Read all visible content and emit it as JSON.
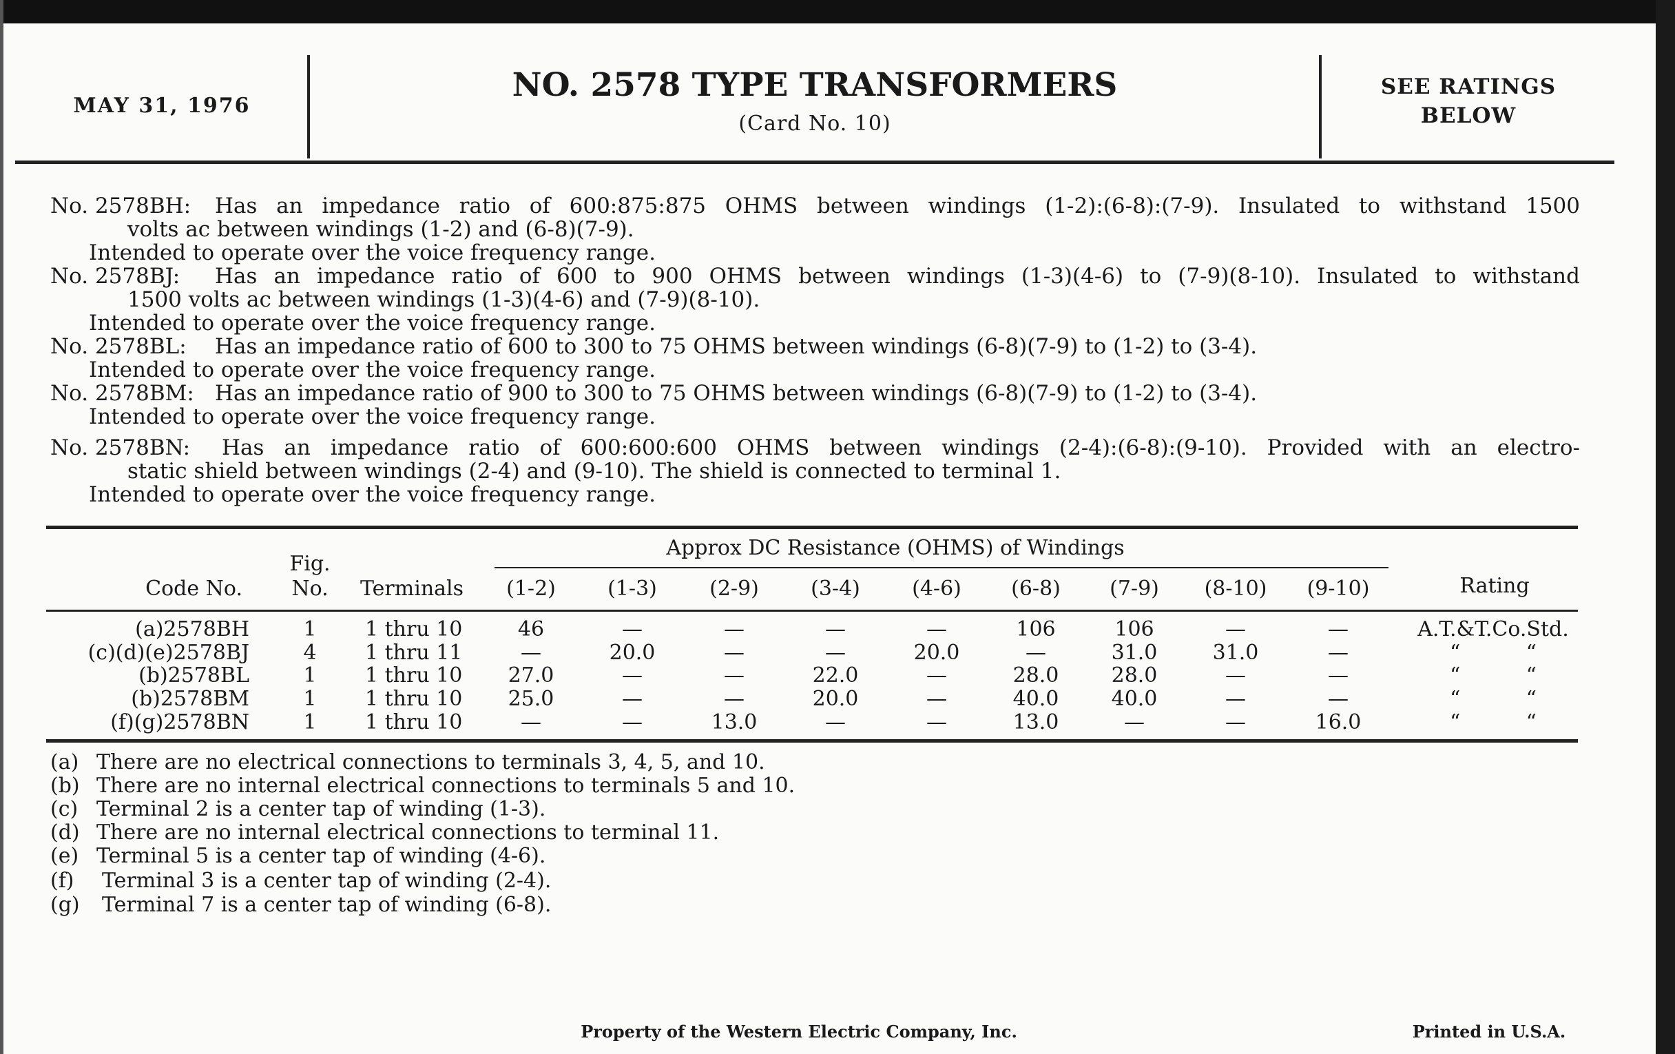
{
  "header": {
    "date": "MAY 31, 1976",
    "title": "NO. 2578 TYPE TRANSFORMERS",
    "subtitle": "(Card No. 10)",
    "ratings_line1": "SEE RATINGS",
    "ratings_line2": "BELOW"
  },
  "descriptions": [
    {
      "code": "No. 2578BH:",
      "lines": [
        "Has an impedance ratio of 600:875:875 OHMS between windings (1-2):(6-8):(7-9). Insulated to withstand 1500",
        "volts ac between windings (1-2) and (6-8)(7-9).",
        "Intended to operate over the voice frequency range."
      ]
    },
    {
      "code": "No. 2578BJ:",
      "lines": [
        "Has an impedance ratio of 600 to 900 OHMS between windings (1-3)(4-6) to (7-9)(8-10). Insulated to withstand",
        "1500 volts ac between windings (1-3)(4-6) and (7-9)(8-10).",
        "Intended to operate over the voice frequency range."
      ]
    },
    {
      "code": "No. 2578BL:",
      "lines": [
        "Has an impedance ratio of 600 to 300 to 75 OHMS between windings (6-8)(7-9) to (1-2) to (3-4).",
        "Intended to operate over the voice frequency range."
      ]
    },
    {
      "code": "No. 2578BM:",
      "lines": [
        "Has an impedance ratio of 900 to 300 to 75 OHMS between windings (6-8)(7-9) to (1-2) to (3-4).",
        "Intended to operate over the voice frequency range."
      ]
    },
    {
      "code": "No. 2578BN:",
      "lines": [
        "Has an impedance ratio of 600:600:600 OHMS between windings (2-4):(6-8):(9-10). Provided with an electro-",
        "static shield between windings (2-4) and (9-10). The shield is connected to terminal 1.",
        "Intended to operate over the voice frequency range."
      ]
    }
  ],
  "table": {
    "group_header": "Approx DC Resistance (OHMS) of Windings",
    "headers": {
      "code": "Code No.",
      "fig1": "Fig.",
      "fig2": "No.",
      "terminals": "Terminals",
      "rating": "Rating"
    },
    "windings": [
      "(1-2)",
      "(1-3)",
      "(2-9)",
      "(3-4)",
      "(4-6)",
      "(6-8)",
      "(7-9)",
      "(8-10)",
      "(9-10)"
    ],
    "rows": [
      {
        "code": "(a)2578BH",
        "fig": "1",
        "terminals": "1 thru 10",
        "values": [
          "46",
          "—",
          "—",
          "—",
          "—",
          "106",
          "106",
          "—",
          "—"
        ],
        "rating": "A.T.&T.Co.Std."
      },
      {
        "code": "(c)(d)(e)2578BJ",
        "fig": "4",
        "terminals": "1 thru 11",
        "values": [
          "—",
          "20.0",
          "—",
          "—",
          "20.0",
          "—",
          "31.0",
          "31.0",
          "—"
        ],
        "rating": "“          “"
      },
      {
        "code": "(b)2578BL",
        "fig": "1",
        "terminals": "1 thru 10",
        "values": [
          "27.0",
          "—",
          "—",
          "22.0",
          "—",
          "28.0",
          "28.0",
          "—",
          "—"
        ],
        "rating": "“          “"
      },
      {
        "code": "(b)2578BM",
        "fig": "1",
        "terminals": "1 thru 10",
        "values": [
          "25.0",
          "—",
          "—",
          "20.0",
          "—",
          "40.0",
          "40.0",
          "—",
          "—"
        ],
        "rating": "“          “"
      },
      {
        "code": "(f)(g)2578BN",
        "fig": "1",
        "terminals": "1 thru 10",
        "values": [
          "—",
          "—",
          "13.0",
          "—",
          "—",
          "13.0",
          "—",
          "—",
          "16.0"
        ],
        "rating": "“          “"
      }
    ]
  },
  "footnotes": [
    {
      "label": "(a)",
      "text": "There are no electrical connections to terminals 3, 4, 5, and 10."
    },
    {
      "label": "(b)",
      "text": "There are no internal electrical connections to terminals 5 and 10."
    },
    {
      "label": "(c)",
      "text": "Terminal 2 is a center tap of winding (1-3)."
    },
    {
      "label": "(d)",
      "text": "There are no internal electrical connections to terminal 11."
    },
    {
      "label": "(e)",
      "text": "Terminal 5 is a center tap of winding (4-6)."
    },
    {
      "label": "(f)",
      "text": "Terminal 3 is a center tap of winding (2-4)."
    },
    {
      "label": "(g)",
      "text": "Terminal 7 is a center tap of winding (6-8)."
    }
  ],
  "footer": {
    "property": "Property of the Western Electric Company, Inc.",
    "printed": "Printed in U.S.A."
  }
}
